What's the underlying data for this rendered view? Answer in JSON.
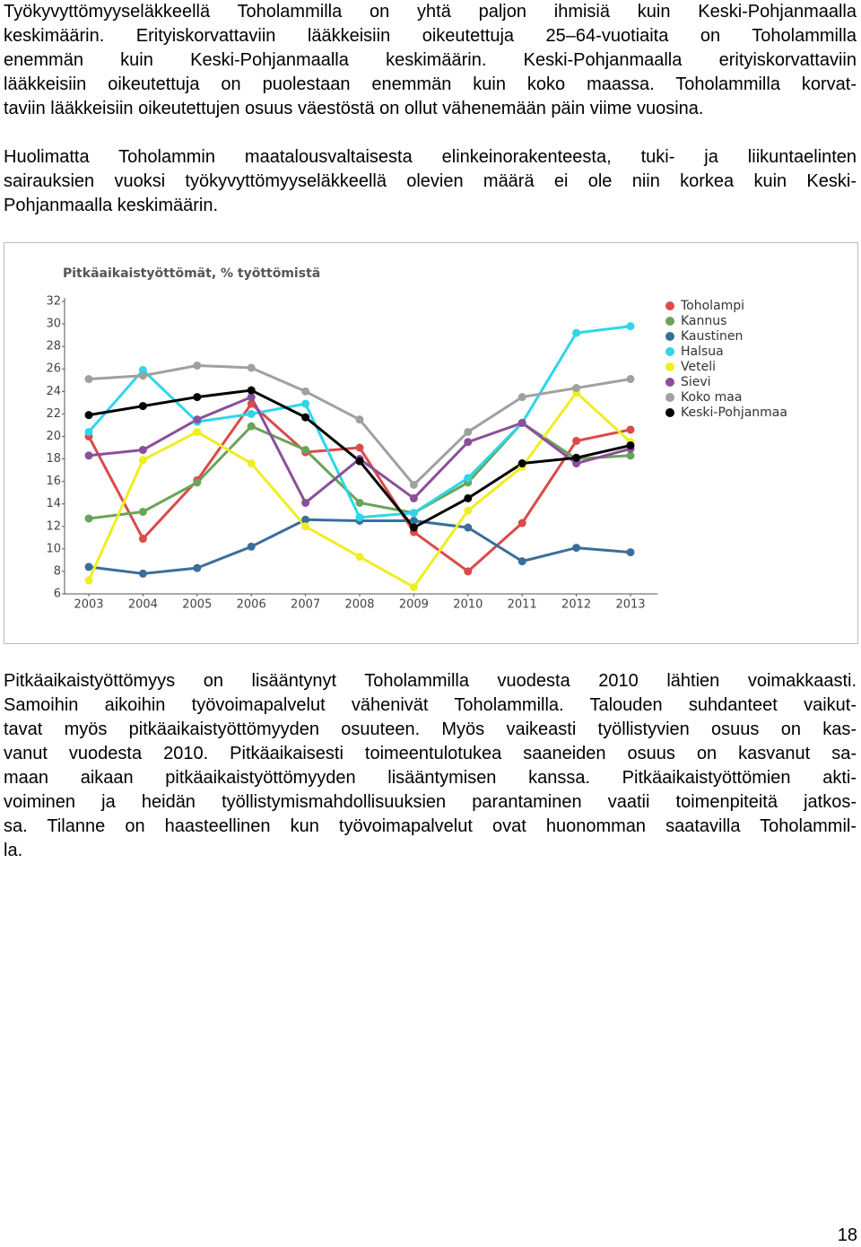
{
  "paragraphs": [
    [
      "Työkyvyttömyyseläkkeellä Toholammilla on yhtä paljon ihmisiä kuin Keski-Pohjanmaalla",
      "keskimäärin. Erityiskorvattaviin lääkkeisiin oikeutettuja 25–64-vuotiaita on Toholammilla",
      "enemmän kuin Keski-Pohjanmaalla keskimäärin. Keski-Pohjanmaalla erityiskorvattaviin",
      "lääkkeisiin oikeutettuja on puolestaan enemmän kuin koko maassa. Toholammilla korvat-",
      "taviin lääkkeisiin oikeutettujen osuus väestöstä on ollut vähenemään päin viime vuosina."
    ],
    [
      "Huolimatta Toholammin maatalousvaltaisesta elinkeinorakenteesta, tuki- ja liikuntaelinten",
      "sairauksien vuoksi työkyvyttömyyseläkkeellä olevien määrä ei ole niin korkea kuin Keski-",
      "Pohjanmaalla keskimäärin."
    ],
    [
      "Pitkäaikaistyöttömyys on lisääntynyt Toholammilla vuodesta 2010 lähtien voimakkaasti.",
      "Samoihin aikoihin työvoimapalvelut vähenivät Toholammilla. Talouden suhdanteet vaikut-",
      "tavat myös pitkäaikaistyöttömyyden osuuteen. Myös vaikeasti työllistyvien osuus on kas-",
      "vanut vuodesta 2010. Pitkäaikaisesti toimeentulotukea saaneiden osuus on kasvanut sa-",
      "maan aikaan pitkäaikaistyöttömyyden lisääntymisen kanssa. Pitkäaikaistyöttömien akti-",
      "voiminen ja heidän työllistymismahdollisuuksien parantaminen vaatii toimenpiteitä jatkos-",
      "sa. Tilanne on haasteellinen kun työvoimapalvelut ovat huonomman saatavilla Toholammil-",
      "la."
    ]
  ],
  "chart_data": {
    "type": "line",
    "title": "Pitkäaikaistyöttömät, % työttömistä",
    "categories": [
      "2003",
      "2004",
      "2005",
      "2006",
      "2007",
      "2008",
      "2009",
      "2010",
      "2011",
      "2012",
      "2013"
    ],
    "series": [
      {
        "name": "Toholampi",
        "color": "#dc4a4a",
        "values": [
          20.0,
          10.9,
          16.1,
          22.9,
          18.6,
          19.0,
          11.5,
          8.0,
          12.3,
          19.6,
          20.6
        ]
      },
      {
        "name": "Kannus",
        "color": "#6aa35a",
        "values": [
          12.7,
          13.3,
          15.9,
          20.9,
          18.8,
          14.1,
          13.2,
          15.9,
          21.2,
          18.0,
          18.3
        ]
      },
      {
        "name": "Kaustinen",
        "color": "#3a6e9a",
        "values": [
          8.4,
          7.8,
          8.3,
          10.2,
          12.6,
          12.5,
          12.5,
          11.9,
          8.9,
          10.1,
          9.7
        ]
      },
      {
        "name": "Halsua",
        "color": "#2fd6e8",
        "values": [
          20.4,
          25.9,
          21.3,
          22.0,
          22.9,
          12.8,
          13.2,
          16.3,
          21.2,
          29.2,
          29.8
        ]
      },
      {
        "name": "Veteli",
        "color": "#eeee22",
        "values": [
          7.2,
          17.9,
          20.4,
          17.6,
          12.0,
          9.3,
          6.6,
          13.4,
          17.3,
          23.9,
          19.5
        ]
      },
      {
        "name": "Sievi",
        "color": "#8a4f9a",
        "values": [
          18.3,
          18.8,
          21.5,
          23.5,
          14.1,
          18.0,
          14.5,
          19.5,
          21.2,
          17.6,
          18.9
        ]
      },
      {
        "name": "Koko maa",
        "color": "#a0a0a0",
        "values": [
          25.1,
          25.4,
          26.3,
          26.1,
          24.0,
          21.5,
          15.7,
          20.4,
          23.5,
          24.3,
          25.1
        ]
      },
      {
        "name": "Keski-Pohjanmaa",
        "color": "#000000",
        "values": [
          21.9,
          22.7,
          23.5,
          24.1,
          21.7,
          17.8,
          11.9,
          14.5,
          17.6,
          18.1,
          19.2
        ]
      }
    ],
    "ylim": [
      6,
      32
    ],
    "yticks": [
      6,
      8,
      10,
      12,
      14,
      16,
      18,
      20,
      22,
      24,
      26,
      28,
      30,
      32
    ],
    "grid": false,
    "legend": "right"
  },
  "page_number": "18"
}
